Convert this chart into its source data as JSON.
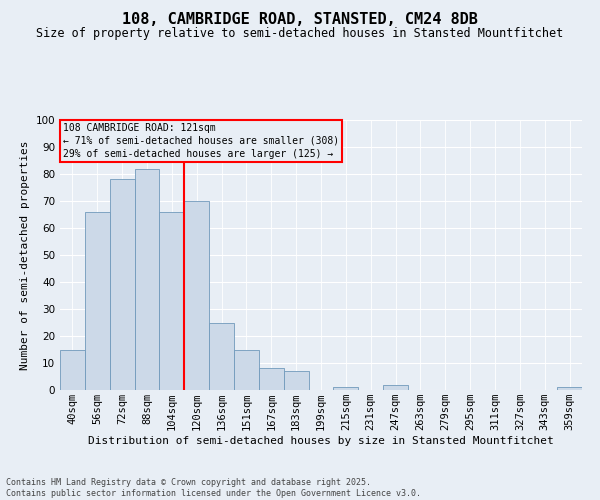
{
  "title": "108, CAMBRIDGE ROAD, STANSTED, CM24 8DB",
  "subtitle": "Size of property relative to semi-detached houses in Stansted Mountfitchet",
  "xlabel": "Distribution of semi-detached houses by size in Stansted Mountfitchet",
  "ylabel": "Number of semi-detached properties",
  "footer_line1": "Contains HM Land Registry data © Crown copyright and database right 2025.",
  "footer_line2": "Contains public sector information licensed under the Open Government Licence v3.0.",
  "annotation_title": "108 CAMBRIDGE ROAD: 121sqm",
  "annotation_line2": "← 71% of semi-detached houses are smaller (308)",
  "annotation_line3": "29% of semi-detached houses are larger (125) →",
  "bar_color": "#ccd9e8",
  "bar_edge_color": "#7099bb",
  "vline_color": "red",
  "vline_x_index": 5,
  "categories": [
    "40sqm",
    "56sqm",
    "72sqm",
    "88sqm",
    "104sqm",
    "120sqm",
    "136sqm",
    "151sqm",
    "167sqm",
    "183sqm",
    "199sqm",
    "215sqm",
    "231sqm",
    "247sqm",
    "263sqm",
    "279sqm",
    "295sqm",
    "311sqm",
    "327sqm",
    "343sqm",
    "359sqm"
  ],
  "values": [
    15,
    66,
    78,
    82,
    66,
    70,
    25,
    15,
    8,
    7,
    0,
    1,
    0,
    2,
    0,
    0,
    0,
    0,
    0,
    0,
    1
  ],
  "ylim": [
    0,
    100
  ],
  "background_color": "#e8eef5",
  "grid_color": "#ffffff",
  "title_fontsize": 11,
  "subtitle_fontsize": 8.5,
  "axis_label_fontsize": 8,
  "tick_fontsize": 7.5,
  "footer_fontsize": 6,
  "annotation_fontsize": 7
}
